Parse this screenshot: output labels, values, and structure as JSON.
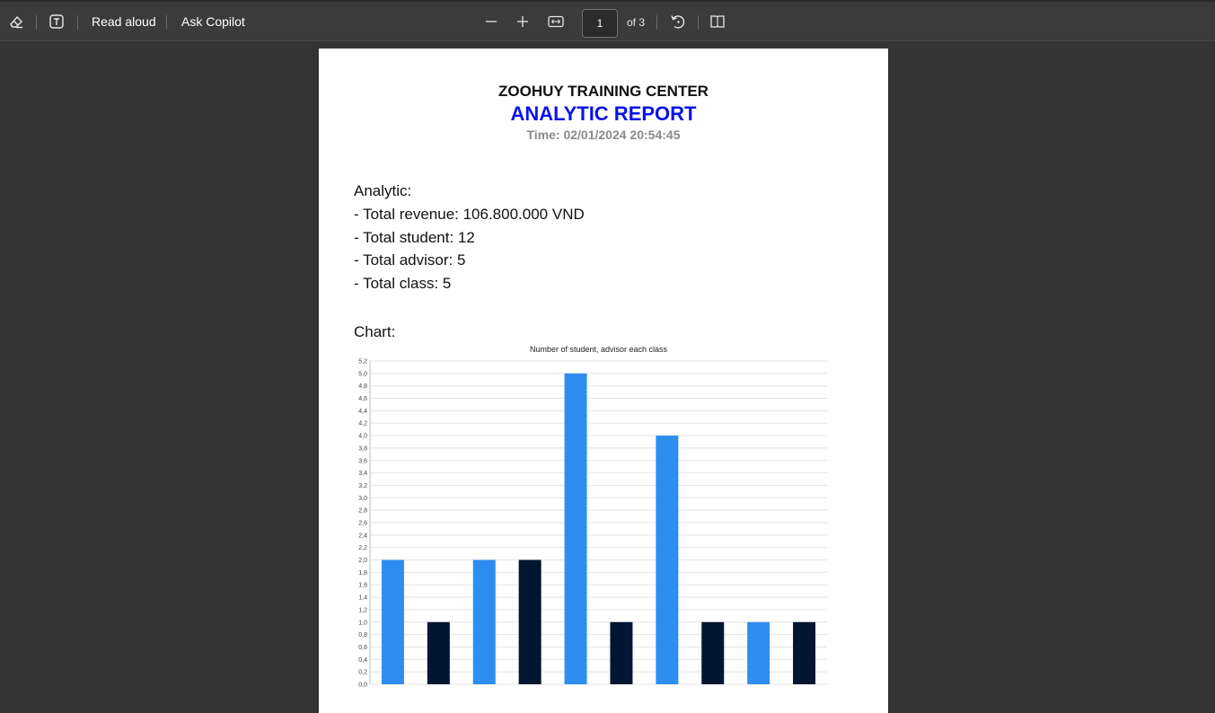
{
  "toolbar": {
    "read_aloud": "Read aloud",
    "ask_copilot": "Ask Copilot",
    "page_current": "1",
    "page_of": "of 3",
    "icons": [
      "eraser-icon",
      "text-box-icon",
      "zoom-out-icon",
      "zoom-in-icon",
      "fit-width-icon",
      "rotate-icon",
      "page-view-icon"
    ]
  },
  "report": {
    "organization": "ZOOHUY TRAINING CENTER",
    "title": "ANALYTIC REPORT",
    "title_color": "#0a14e8",
    "time": "Time: 02/01/2024 20:54:45",
    "analytic_heading": "Analytic:",
    "lines": [
      "- Total revenue: 106.800.000 VND",
      "- Total student: 12",
      "- Total advisor: 5",
      "- Total class: 5"
    ],
    "chart_heading": "Chart:"
  },
  "chart_data": {
    "type": "bar",
    "title": "Number of student, advisor each class",
    "xlabel": "",
    "ylabel": "",
    "ylim": [
      0,
      5.2
    ],
    "yticks": [
      "0,0",
      "0,2",
      "0,4",
      "0,6",
      "0,8",
      "1,0",
      "1,2",
      "1,4",
      "1,6",
      "1,8",
      "2,0",
      "2,2",
      "2,4",
      "2,6",
      "2,8",
      "3,0",
      "3,2",
      "3,4",
      "3,6",
      "3,8",
      "4,0",
      "4,2",
      "4,4",
      "4,6",
      "4,8",
      "5,0",
      "5,2"
    ],
    "grid": true,
    "colors": [
      "#2e8ef0",
      "#031631"
    ],
    "values": [
      2,
      1,
      2,
      2,
      5,
      1,
      4,
      1,
      1,
      1
    ],
    "bar_colors": [
      0,
      1,
      0,
      1,
      0,
      1,
      0,
      1,
      0,
      1
    ]
  }
}
